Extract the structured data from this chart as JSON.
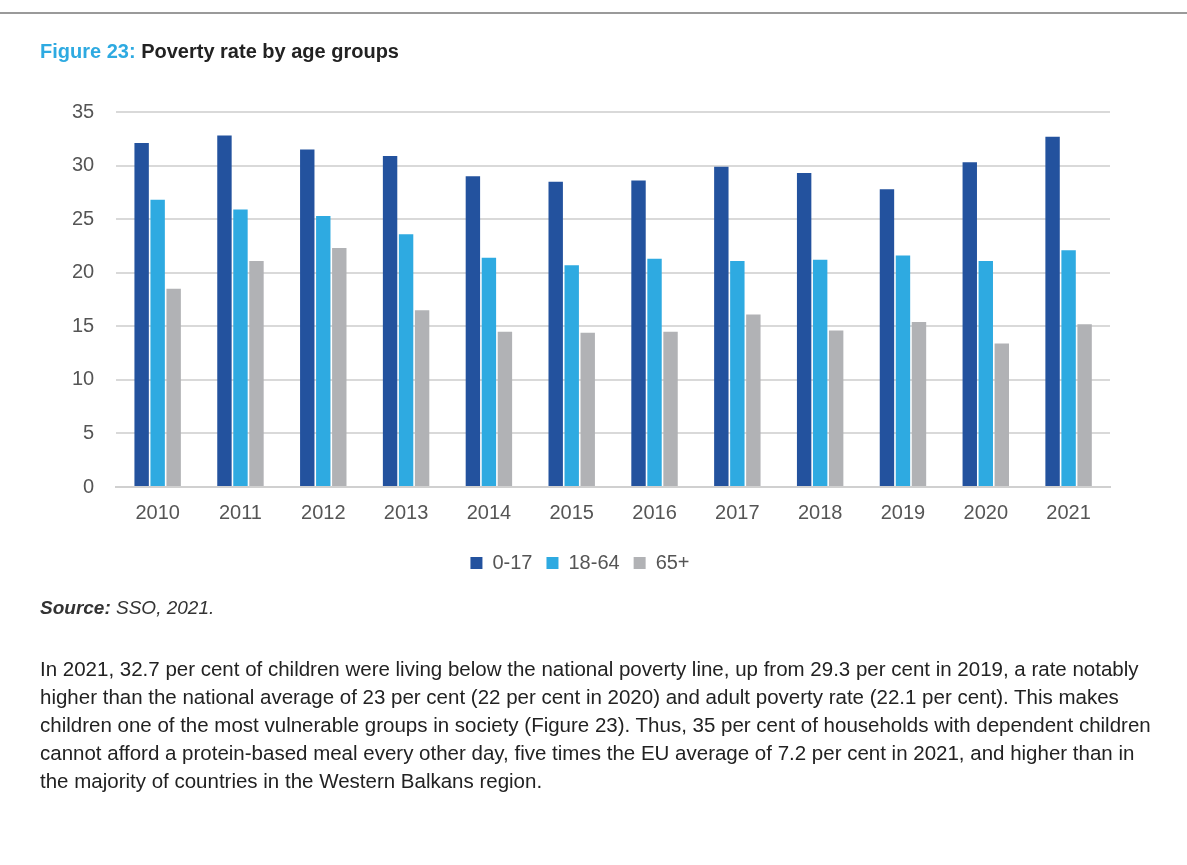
{
  "chart_data": {
    "type": "bar",
    "title": "Figure 23: Poverty rate by age groups",
    "categories": [
      "2010",
      "2011",
      "2012",
      "2013",
      "2014",
      "2015",
      "2016",
      "2017",
      "2018",
      "2019",
      "2020",
      "2021"
    ],
    "series": [
      {
        "name": "0-17",
        "color": "#23529e",
        "values": [
          32.1,
          32.8,
          31.5,
          30.9,
          29.0,
          28.5,
          28.6,
          29.9,
          29.3,
          27.8,
          30.3,
          32.7
        ]
      },
      {
        "name": "18-64",
        "color": "#2eaae1",
        "values": [
          26.8,
          25.9,
          25.3,
          23.6,
          21.4,
          20.7,
          21.3,
          21.1,
          21.2,
          21.6,
          21.1,
          22.1
        ]
      },
      {
        "name": "65+",
        "color": "#b1b2b5",
        "values": [
          18.5,
          21.1,
          22.3,
          16.5,
          14.5,
          14.4,
          14.5,
          16.1,
          14.6,
          15.4,
          13.4,
          15.2
        ]
      }
    ],
    "ylim": [
      0,
      35
    ],
    "yticks": [
      0,
      5,
      10,
      15,
      20,
      25,
      30,
      35
    ],
    "grid": "y",
    "legend": "bottom",
    "annotations": [
      "Source: SSO, 2021.",
      "In 2021, 32.7 per cent of children were living below the national poverty line, up from 29.3 per cent in 2019, a rate notably higher than the national average of 23 per cent (22 per cent in 2020) and adult poverty rate (22.1 per cent). This makes children one of the most vulnerable groups in society (Figure 23). Thus, 35 per cent of households with dependent children cannot afford a protein-based meal every other day, five times the EU average of 7.2 per cent in 2021, and higher than in the majority of countries in the Western Balkans region."
    ]
  }
}
